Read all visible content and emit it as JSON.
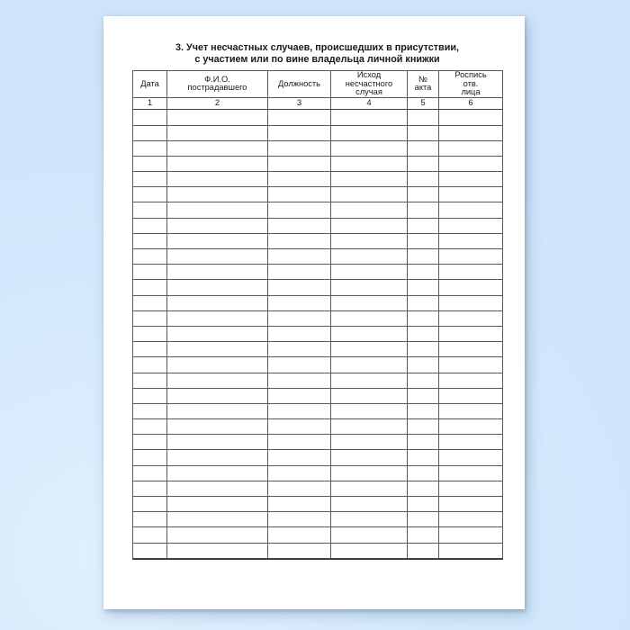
{
  "document": {
    "title_line1": "3. Учет несчастных случаев, происшедших в присутствии,",
    "title_line2": "с участием или по вине владельца личной книжки"
  },
  "table": {
    "columns": [
      {
        "label": "Дата",
        "number": "1"
      },
      {
        "label": "Ф.И.О.\nпострадавшего",
        "number": "2"
      },
      {
        "label": "Должность",
        "number": "3"
      },
      {
        "label": "Исход\nнесчастного\nслучая",
        "number": "4"
      },
      {
        "label": "№\nакта",
        "number": "5"
      },
      {
        "label": "Роспись\nотв.\nлица",
        "number": "6"
      }
    ],
    "empty_row_count": 29
  },
  "colors": {
    "background_blue": "#d4e9fc",
    "page_white": "#ffffff",
    "grid_line": "#5a5a5a",
    "text": "#1a1a1a"
  }
}
